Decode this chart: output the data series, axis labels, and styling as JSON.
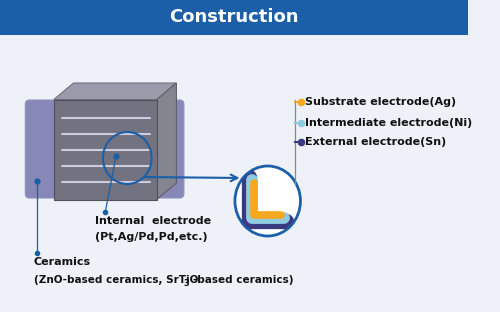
{
  "title": "Construction",
  "title_color": "#ffffff",
  "body_bg": "#eef2f8",
  "labels": {
    "substrate": "Substrate electrode(Ag)",
    "intermediate": "Intermediate electrode(Ni)",
    "external": "External electrode(Sn)",
    "internal_line1": "Internal  electrode",
    "internal_line2": "(Pt,Ag/Pd,Pd,etc.)",
    "ceramics_line1": "Ceramics",
    "ceramics_line2": "(ZnO-based ceramics, SrTiO",
    "ceramics_sub": "3",
    "ceramics_line3": "-based ceramics)"
  },
  "colors": {
    "title_bg": "#1a5fa8",
    "body_bg": "#eef2f8",
    "arrow_blue": "#1a5fa8",
    "substrate_ag": "#f5a820",
    "intermediate_ni": "#90cce0",
    "external_sn": "#3a3a80",
    "comp_front": "#727280",
    "comp_top": "#9a9aaa",
    "comp_right": "#858590",
    "comp_side_cap": "#8888b8",
    "comp_edge": "#505058",
    "internal_line": "#ccccdd",
    "dot": "#1a5fa8"
  },
  "font_sizes": {
    "title": 13,
    "label": 8.0,
    "small": 6.0
  }
}
